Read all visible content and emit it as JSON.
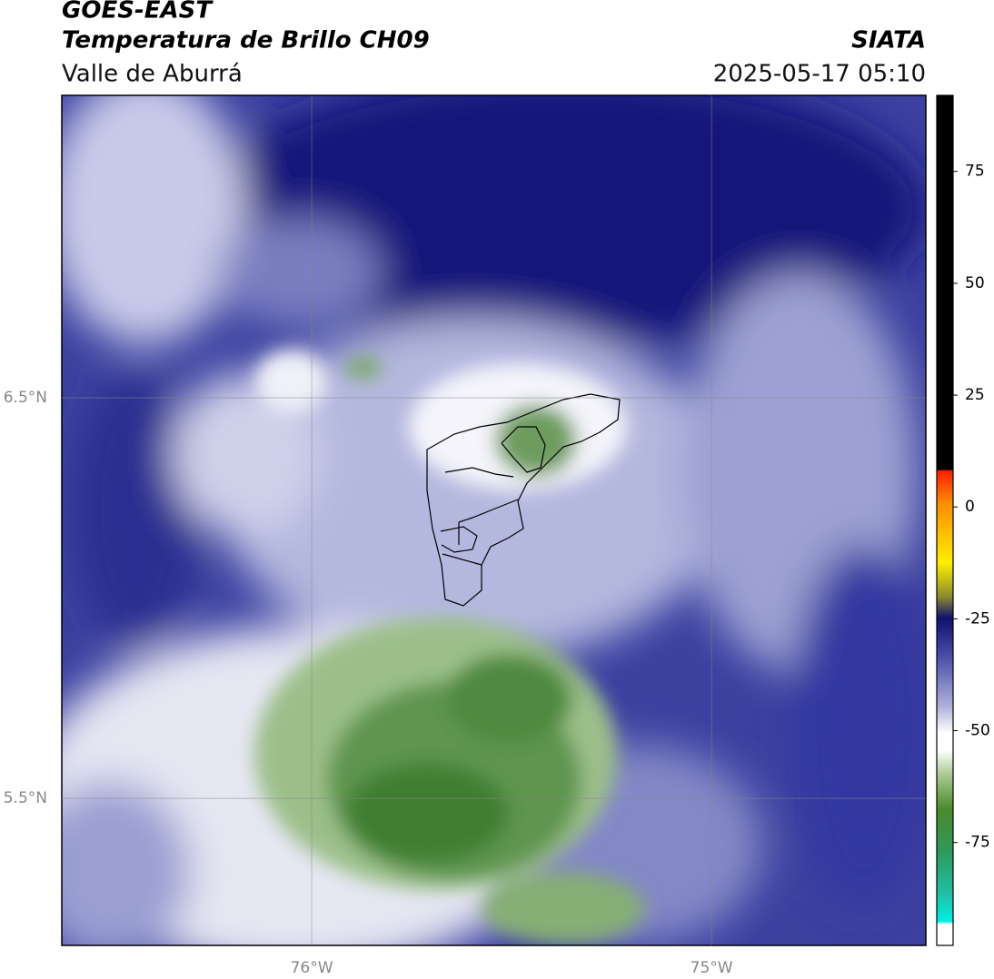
{
  "chart_data": {
    "type": "map",
    "title": "GOES-EAST",
    "subtitle": "Temperatura de Brillo CH09",
    "region": "Valle de Aburrá",
    "source": "SIATA",
    "timestamp": "2025-05-17 05:10",
    "xlim": [
      -76.625,
      -74.464
    ],
    "ylim": [
      5.133,
      7.255
    ],
    "xticks": [
      {
        "value": -76,
        "label": "76°W"
      },
      {
        "value": -75,
        "label": "75°W"
      }
    ],
    "yticks": [
      {
        "value": 6.5,
        "label": "6.5°N"
      },
      {
        "value": 5.5,
        "label": "5.5°N"
      }
    ],
    "grid": true,
    "colorbar": {
      "lim": [
        -98,
        92
      ],
      "ticks": [
        75,
        50,
        25,
        0,
        -25,
        -50,
        -75
      ]
    }
  }
}
